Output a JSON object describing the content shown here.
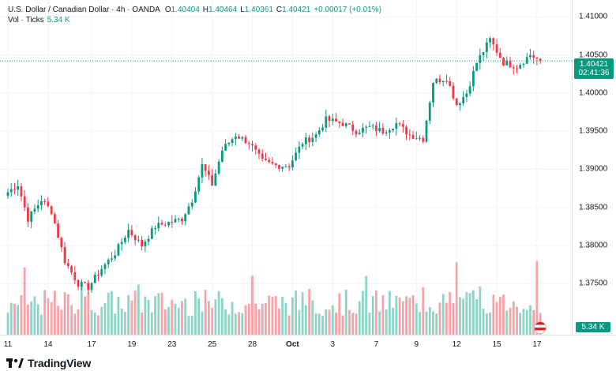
{
  "legend": {
    "symbol": "U.S. Dollar / Canadian Dollar · 4h · OANDA",
    "open_label": "O",
    "open": "1.40404",
    "high_label": "H",
    "high": "1.40464",
    "low_label": "L",
    "low": "1.40361",
    "close_label": "C",
    "close": "1.40421",
    "change": "+0.00017 (+0.01%)",
    "vol_label": "Vol · Ticks",
    "vol_value": "5.34 K"
  },
  "price_tag": {
    "price": "1.40421",
    "countdown": "02:41:36"
  },
  "vol_tag": "5.34 K",
  "logo": {
    "name": "TradingView"
  },
  "colors": {
    "up": "#089981",
    "down": "#f23645",
    "up_vol": "#8fd3c6",
    "down_vol": "#f5a3a8",
    "grid": "#f0f3fa"
  },
  "chart_data": {
    "type": "candlestick",
    "title": "U.S. Dollar / Canadian Dollar · 4h · OANDA",
    "ylim": [
      1.3683,
      1.4122
    ],
    "y_ticks": [
      "1.41000",
      "1.40500",
      "1.40000",
      "1.39500",
      "1.39000",
      "1.38500",
      "1.38000",
      "1.37500"
    ],
    "y_tick_values": [
      1.41,
      1.405,
      1.4,
      1.395,
      1.39,
      1.385,
      1.38,
      1.375
    ],
    "x_ticks": [
      "11",
      "14",
      "17",
      "19",
      "23",
      "25",
      "28",
      "Oct",
      "3",
      "7",
      "9",
      "12",
      "15",
      "17"
    ],
    "x_tick_index": [
      0,
      12,
      25,
      37,
      49,
      61,
      73,
      85,
      97,
      110,
      122,
      134,
      146,
      158
    ],
    "current_price": 1.40421,
    "anchors": [
      [
        0,
        1.387
      ],
      [
        3,
        1.388
      ],
      [
        6,
        1.3835
      ],
      [
        10,
        1.386
      ],
      [
        13,
        1.3845
      ],
      [
        17,
        1.378
      ],
      [
        21,
        1.375
      ],
      [
        24,
        1.3745
      ],
      [
        28,
        1.377
      ],
      [
        32,
        1.379
      ],
      [
        36,
        1.382
      ],
      [
        40,
        1.38
      ],
      [
        44,
        1.3825
      ],
      [
        48,
        1.383
      ],
      [
        52,
        1.3835
      ],
      [
        55,
        1.386
      ],
      [
        58,
        1.3905
      ],
      [
        61,
        1.388
      ],
      [
        64,
        1.3925
      ],
      [
        68,
        1.3945
      ],
      [
        72,
        1.3935
      ],
      [
        76,
        1.391
      ],
      [
        80,
        1.3905
      ],
      [
        84,
        1.3905
      ],
      [
        88,
        1.3935
      ],
      [
        92,
        1.3945
      ],
      [
        95,
        1.3965
      ],
      [
        100,
        1.396
      ],
      [
        104,
        1.395
      ],
      [
        108,
        1.3955
      ],
      [
        112,
        1.395
      ],
      [
        116,
        1.396
      ],
      [
        120,
        1.3945
      ],
      [
        124,
        1.394
      ],
      [
        127,
        1.4015
      ],
      [
        131,
        1.402
      ],
      [
        134,
        1.3985
      ],
      [
        137,
        1.4
      ],
      [
        140,
        1.404
      ],
      [
        144,
        1.407
      ],
      [
        148,
        1.404
      ],
      [
        152,
        1.4035
      ],
      [
        156,
        1.405
      ],
      [
        159,
        1.4042
      ]
    ],
    "volume_max": 1.0
  }
}
